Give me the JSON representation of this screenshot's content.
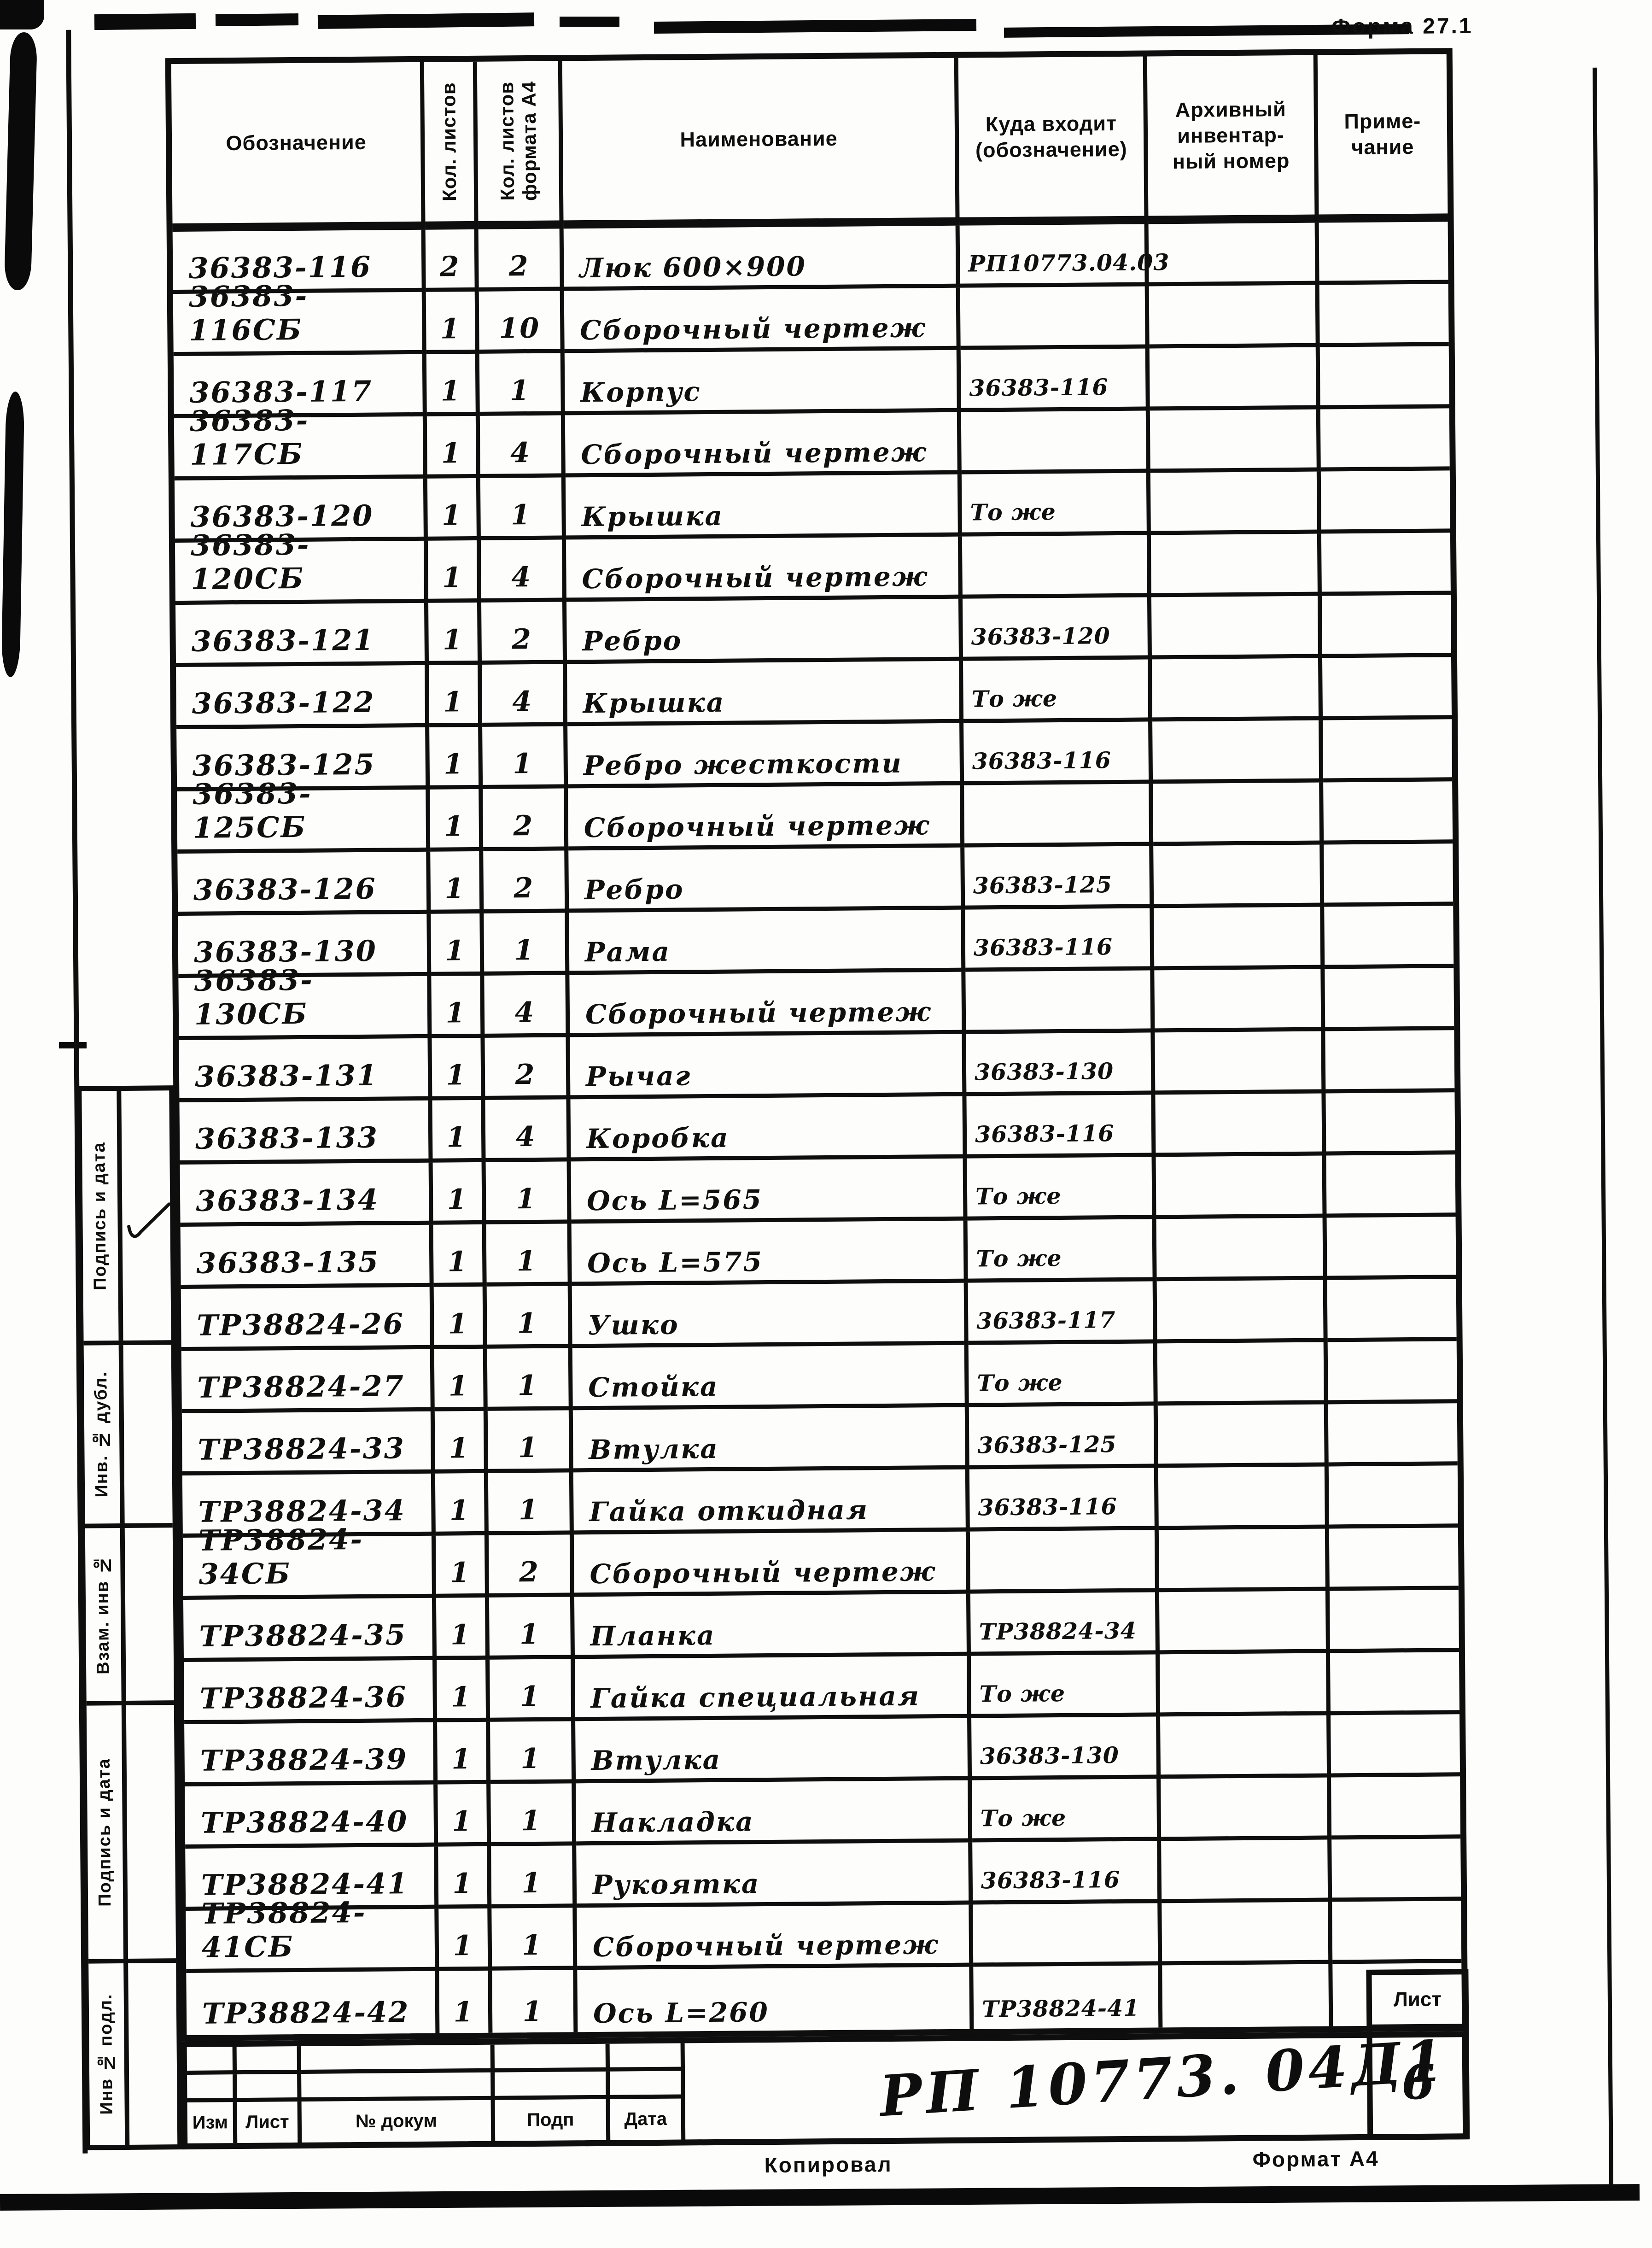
{
  "meta": {
    "form_label": "Форма 27.1",
    "doc_number": "РП 10773. 04Д1",
    "sheet_label": "Лист",
    "sheet_number": "6",
    "footer_copy": "Копировал",
    "footer_format": "Формат А4"
  },
  "table": {
    "headers": {
      "designation": "Обозначение",
      "sheets": "Кол. листов",
      "sheets_a4": "Кол. листов\nформата А4",
      "name": "Наименование",
      "where": "Куда входит\n(обозначение)",
      "archive": "Архивный\nинвентар-\nный номер",
      "note": "Приме-\nчание"
    },
    "rows": [
      {
        "designation": "36383-116",
        "sheets": "2",
        "a4": "2",
        "name": "Люк 600×900",
        "where": "РП10773.04.03",
        "archive": "",
        "note": ""
      },
      {
        "designation": "36383-116СБ",
        "sheets": "1",
        "a4": "10",
        "name": "Сборочный чертеж",
        "where": "",
        "archive": "",
        "note": ""
      },
      {
        "designation": "36383-117",
        "sheets": "1",
        "a4": "1",
        "name": "Корпус",
        "where": "36383-116",
        "archive": "",
        "note": ""
      },
      {
        "designation": "36383-117СБ",
        "sheets": "1",
        "a4": "4",
        "name": "Сборочный чертеж",
        "where": "",
        "archive": "",
        "note": ""
      },
      {
        "designation": "36383-120",
        "sheets": "1",
        "a4": "1",
        "name": "Крышка",
        "where": "То же",
        "archive": "",
        "note": ""
      },
      {
        "designation": "36383-120СБ",
        "sheets": "1",
        "a4": "4",
        "name": "Сборочный чертеж",
        "where": "",
        "archive": "",
        "note": ""
      },
      {
        "designation": "36383-121",
        "sheets": "1",
        "a4": "2",
        "name": "Ребро",
        "where": "36383-120",
        "archive": "",
        "note": ""
      },
      {
        "designation": "36383-122",
        "sheets": "1",
        "a4": "4",
        "name": "Крышка",
        "where": "То же",
        "archive": "",
        "note": ""
      },
      {
        "designation": "36383-125",
        "sheets": "1",
        "a4": "1",
        "name": "Ребро жесткости",
        "where": "36383-116",
        "archive": "",
        "note": ""
      },
      {
        "designation": "36383-125СБ",
        "sheets": "1",
        "a4": "2",
        "name": "Сборочный чертеж",
        "where": "",
        "archive": "",
        "note": ""
      },
      {
        "designation": "36383-126",
        "sheets": "1",
        "a4": "2",
        "name": "Ребро",
        "where": "36383-125",
        "archive": "",
        "note": ""
      },
      {
        "designation": "36383-130",
        "sheets": "1",
        "a4": "1",
        "name": "Рама",
        "where": "36383-116",
        "archive": "",
        "note": ""
      },
      {
        "designation": "36383-130СБ",
        "sheets": "1",
        "a4": "4",
        "name": "Сборочный чертеж",
        "where": "",
        "archive": "",
        "note": ""
      },
      {
        "designation": "36383-131",
        "sheets": "1",
        "a4": "2",
        "name": "Рычаг",
        "where": "36383-130",
        "archive": "",
        "note": ""
      },
      {
        "designation": "36383-133",
        "sheets": "1",
        "a4": "4",
        "name": "Коробка",
        "where": "36383-116",
        "archive": "",
        "note": ""
      },
      {
        "designation": "36383-134",
        "sheets": "1",
        "a4": "1",
        "name": "Ось L=565",
        "where": "То же",
        "archive": "",
        "note": ""
      },
      {
        "designation": "36383-135",
        "sheets": "1",
        "a4": "1",
        "name": "Ось L=575",
        "where": "То же",
        "archive": "",
        "note": ""
      },
      {
        "designation": "ТР38824-26",
        "sheets": "1",
        "a4": "1",
        "name": "Ушко",
        "where": "36383-117",
        "archive": "",
        "note": ""
      },
      {
        "designation": "ТР38824-27",
        "sheets": "1",
        "a4": "1",
        "name": "Стойка",
        "where": "То же",
        "archive": "",
        "note": ""
      },
      {
        "designation": "ТР38824-33",
        "sheets": "1",
        "a4": "1",
        "name": "Втулка",
        "where": "36383-125",
        "archive": "",
        "note": ""
      },
      {
        "designation": "ТР38824-34",
        "sheets": "1",
        "a4": "1",
        "name": "Гайка откидная",
        "where": "36383-116",
        "archive": "",
        "note": ""
      },
      {
        "designation": "ТР38824-34СБ",
        "sheets": "1",
        "a4": "2",
        "name": "Сборочный чертеж",
        "where": "",
        "archive": "",
        "note": ""
      },
      {
        "designation": "ТР38824-35",
        "sheets": "1",
        "a4": "1",
        "name": "Планка",
        "where": "ТР38824-34",
        "archive": "",
        "note": ""
      },
      {
        "designation": "ТР38824-36",
        "sheets": "1",
        "a4": "1",
        "name": "Гайка специальная",
        "where": "То же",
        "archive": "",
        "note": ""
      },
      {
        "designation": "ТР38824-39",
        "sheets": "1",
        "a4": "1",
        "name": "Втулка",
        "where": "36383-130",
        "archive": "",
        "note": ""
      },
      {
        "designation": "ТР38824-40",
        "sheets": "1",
        "a4": "1",
        "name": "Накладка",
        "where": "То же",
        "archive": "",
        "note": ""
      },
      {
        "designation": "ТР38824-41",
        "sheets": "1",
        "a4": "1",
        "name": "Рукоятка",
        "where": "36383-116",
        "archive": "",
        "note": ""
      },
      {
        "designation": "ТР38824-41СБ",
        "sheets": "1",
        "a4": "1",
        "name": "Сборочный чертеж",
        "where": "",
        "archive": "",
        "note": ""
      },
      {
        "designation": "ТР38824-42",
        "sheets": "1",
        "a4": "1",
        "name": "Ось L=260",
        "where": "ТР38824-41",
        "archive": "",
        "note": ""
      }
    ]
  },
  "sidebar": {
    "sections": [
      {
        "label": "Подпись и дата"
      },
      {
        "label": "Инв. № дубл."
      },
      {
        "label": "Взам. инв №"
      },
      {
        "label": "Подпись и дата"
      },
      {
        "label": "Инв № подл."
      }
    ]
  },
  "title_block": {
    "labels": [
      "Изм",
      "Лист",
      "№ докум",
      "Подп",
      "Дата"
    ]
  }
}
